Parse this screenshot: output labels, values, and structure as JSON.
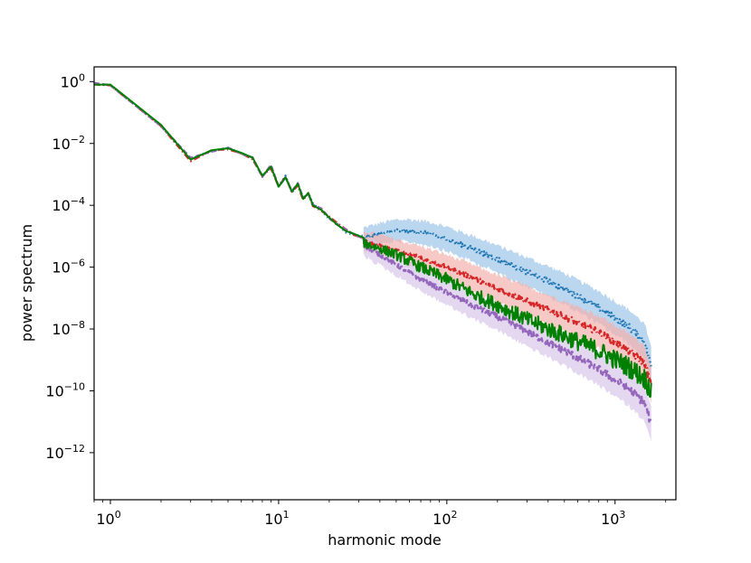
{
  "chart_data": {
    "type": "line",
    "title": "",
    "xlabel": "harmonic mode",
    "ylabel": "power spectrum",
    "xscale": "log",
    "yscale": "log",
    "xlim": [
      0.8,
      2300
    ],
    "ylim": [
      3e-14,
      3
    ],
    "grid": false,
    "legend": "none",
    "xticks": [
      {
        "base": "10",
        "exp": "0",
        "value": 1
      },
      {
        "base": "10",
        "exp": "1",
        "value": 10
      },
      {
        "base": "10",
        "exp": "2",
        "value": 100
      },
      {
        "base": "10",
        "exp": "3",
        "value": 1000
      }
    ],
    "yticks": [
      {
        "base": "10",
        "exp": "0",
        "value": 1
      },
      {
        "base": "10",
        "exp": "−2",
        "value": 0.01
      },
      {
        "base": "10",
        "exp": "−4",
        "value": 0.0001
      },
      {
        "base": "10",
        "exp": "−6",
        "value": 1e-06
      },
      {
        "base": "10",
        "exp": "−8",
        "value": 1e-08
      },
      {
        "base": "10",
        "exp": "−10",
        "value": 1e-10
      },
      {
        "base": "10",
        "exp": "−12",
        "value": 1e-12
      }
    ],
    "x_max": 1640,
    "shared_low_modes": {
      "x": [
        0.8,
        1,
        2,
        3,
        4,
        5,
        6,
        7,
        8,
        9,
        10,
        11,
        12,
        13,
        14,
        15,
        16,
        18,
        20,
        22,
        25,
        28,
        32
      ],
      "y": [
        0.8,
        0.8,
        0.04,
        0.003,
        0.006,
        0.007,
        0.005,
        0.0035,
        0.0009,
        0.0018,
        0.0004,
        0.0008,
        0.00028,
        0.0005,
        0.00016,
        0.00025,
        0.0001,
        7e-05,
        4e-05,
        2.5e-05,
        1.5e-05,
        1.2e-05,
        9e-06
      ]
    },
    "series": [
      {
        "color": "#1f77b4",
        "band_color": "#9ec5e8",
        "style": "dotted",
        "x": [
          32,
          40,
          50,
          60,
          80,
          100,
          150,
          200,
          300,
          500,
          800,
          1200,
          1500,
          1640
        ],
        "y": [
          9e-06,
          1.2e-05,
          1.5e-05,
          1.5e-05,
          1.2e-05,
          8e-06,
          3.5e-06,
          1.8e-06,
          7e-07,
          2e-07,
          5e-08,
          1.2e-08,
          4e-09,
          6e-10
        ]
      },
      {
        "color": "#d62728",
        "band_color": "#f2b1ae",
        "style": "dashdot",
        "x": [
          32,
          40,
          50,
          70,
          100,
          150,
          200,
          300,
          500,
          800,
          1200,
          1500,
          1640
        ],
        "y": [
          7e-06,
          5e-06,
          3.5e-06,
          2e-06,
          1e-06,
          4e-07,
          2e-07,
          8e-08,
          2.5e-08,
          8e-09,
          2e-09,
          8e-10,
          1.5e-10
        ]
      },
      {
        "color": "#9467bd",
        "band_color": "#d9c8ea",
        "style": "dashed",
        "x": [
          32,
          40,
          50,
          70,
          100,
          150,
          200,
          300,
          500,
          800,
          1200,
          1500,
          1640
        ],
        "y": [
          5e-06,
          2.5e-06,
          1.2e-06,
          4e-07,
          1.5e-07,
          5e-08,
          2.5e-08,
          8e-09,
          2e-09,
          5e-10,
          1.2e-10,
          4e-11,
          8e-12
        ]
      },
      {
        "color": "#008000",
        "band_color": "",
        "style": "solid",
        "x": [
          32,
          40,
          50,
          70,
          100,
          150,
          200,
          300,
          500,
          800,
          1200,
          1500,
          1640
        ],
        "y": [
          6e-06,
          4e-06,
          2.5e-06,
          1e-06,
          4e-07,
          1.2e-07,
          6e-08,
          2e-08,
          6e-09,
          2e-09,
          6e-10,
          2.5e-10,
          1e-10
        ]
      }
    ]
  }
}
